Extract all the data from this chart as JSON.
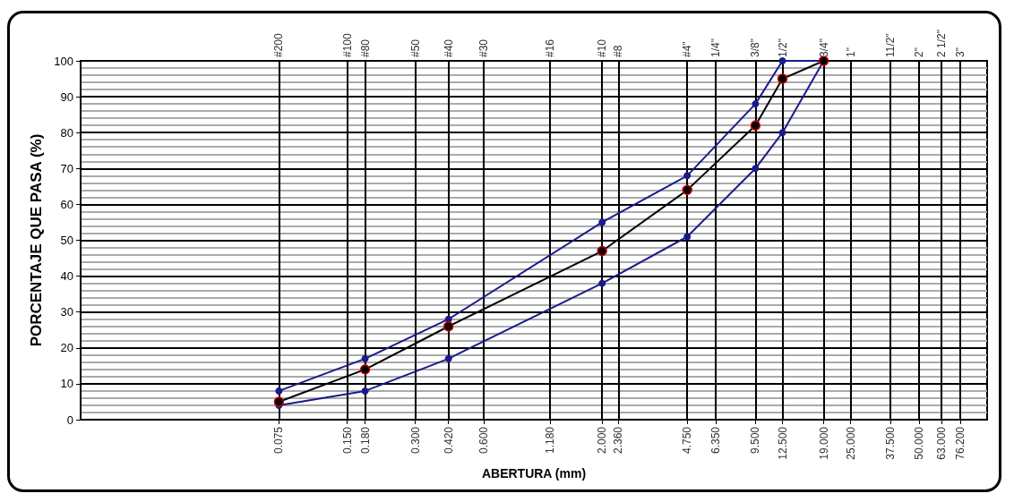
{
  "chart_data": {
    "type": "line",
    "xlabel": "ABERTURA (mm)",
    "ylabel": "PORCENTAJE QUE PASA (%)",
    "log": "x",
    "xlim": [
      0.01,
      100
    ],
    "ylim": [
      0,
      100
    ],
    "xticks": [
      {
        "value": 0.075,
        "label": "0.075"
      },
      {
        "value": 0.15,
        "label": "0.150"
      },
      {
        "value": 0.18,
        "label": "0.180"
      },
      {
        "value": 0.3,
        "label": "0.300"
      },
      {
        "value": 0.42,
        "label": "0.420"
      },
      {
        "value": 0.6,
        "label": "0.600"
      },
      {
        "value": 1.18,
        "label": "1.180"
      },
      {
        "value": 2,
        "label": "2.000"
      },
      {
        "value": 2.36,
        "label": "2.360"
      },
      {
        "value": 4.75,
        "label": "4.750"
      },
      {
        "value": 6.35,
        "label": "6.350"
      },
      {
        "value": 9.5,
        "label": "9.500"
      },
      {
        "value": 12.5,
        "label": "12.500"
      },
      {
        "value": 19,
        "label": "19.000"
      },
      {
        "value": 25,
        "label": "25.000"
      },
      {
        "value": 37.5,
        "label": "37.500"
      },
      {
        "value": 50,
        "label": "50.000"
      },
      {
        "value": 63,
        "label": "63.000"
      },
      {
        "value": 76.2,
        "label": "76.200"
      }
    ],
    "annotations": [
      "#200",
      "#100",
      "#80",
      "#50",
      "#40",
      "#30",
      "#16",
      "#10",
      "#8",
      "#4\"",
      "1/4\"",
      "3/8\"",
      "1/2\"",
      "3/4\"",
      "1\"",
      "11/2\"",
      "2\"",
      "2 1/2\"",
      "3\""
    ],
    "yticks": [
      0,
      10,
      20,
      30,
      40,
      50,
      60,
      70,
      80,
      90,
      100
    ],
    "grid": true,
    "marker": "circle",
    "line_style": "solid",
    "x": [
      0.075,
      0.18,
      0.42,
      2,
      4.75,
      9.5,
      12.5,
      19
    ],
    "series": [
      {
        "color": "#1a1a8c",
        "values": [
          8,
          17,
          28,
          55,
          68,
          88,
          100,
          100
        ]
      },
      {
        "color": "#000000",
        "values": [
          5,
          14,
          26,
          47,
          64,
          82,
          95,
          100
        ]
      },
      {
        "color": "#1a1a8c",
        "values": [
          4,
          8,
          17,
          38,
          51,
          70,
          80,
          100
        ]
      }
    ]
  }
}
